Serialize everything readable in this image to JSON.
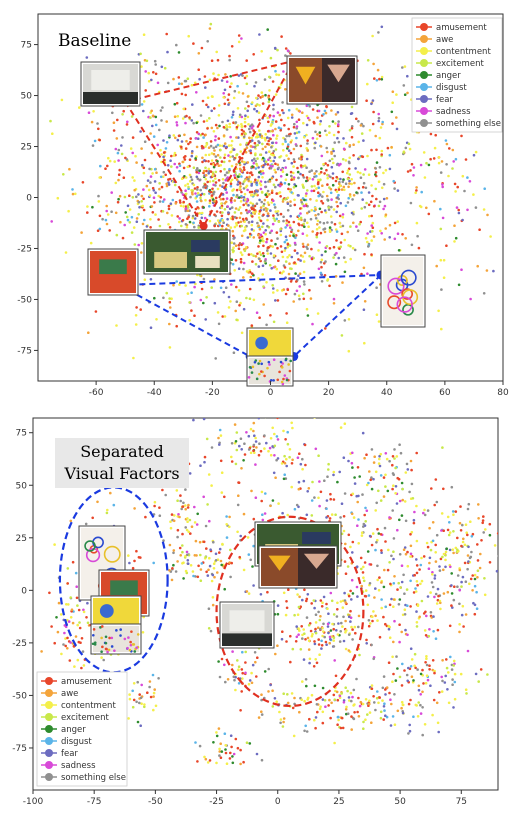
{
  "chart_data": [
    {
      "type": "scatter",
      "title": "Baseline",
      "xlim": [
        -80,
        80
      ],
      "ylim": [
        -90,
        90
      ],
      "xticks": [
        -60,
        -40,
        -20,
        0,
        20,
        40,
        60,
        80
      ],
      "yticks": [
        75,
        50,
        25,
        0,
        -25,
        -50,
        -75
      ],
      "legend_position": "top-right",
      "grid": false,
      "series": [
        {
          "name": "amusement",
          "color": "#e8462a"
        },
        {
          "name": "awe",
          "color": "#f4a43a"
        },
        {
          "name": "contentment",
          "color": "#f4ef4a"
        },
        {
          "name": "excitement",
          "color": "#c8e84a"
        },
        {
          "name": "anger",
          "color": "#2e8b2e"
        },
        {
          "name": "disgust",
          "color": "#5ab4e8"
        },
        {
          "name": "fear",
          "color": "#6c6cc0"
        },
        {
          "name": "sadness",
          "color": "#d84ad8"
        },
        {
          "name": "something else",
          "color": "#909090"
        }
      ],
      "red_connections": {
        "color": "#e03020",
        "points": [
          [
            -50,
            47
          ],
          [
            8,
            67
          ],
          [
            -23,
            -14
          ]
        ]
      },
      "blue_connections": {
        "color": "#1a3ae0",
        "points": [
          [
            -52,
            -43
          ],
          [
            38,
            -38
          ],
          [
            -7,
            -78
          ],
          [
            8,
            -78
          ]
        ]
      },
      "image_thumbnails": 8
    },
    {
      "type": "scatter",
      "title": "Separated\nVisual Factors",
      "xlim": [
        -100,
        90
      ],
      "ylim": [
        -95,
        82
      ],
      "xticks": [
        -100,
        -75,
        -50,
        -25,
        0,
        25,
        50,
        75
      ],
      "yticks": [
        75,
        50,
        25,
        0,
        -25,
        -50,
        -75
      ],
      "legend_position": "bottom-left",
      "grid": false,
      "series": [
        {
          "name": "amusement",
          "color": "#e8462a"
        },
        {
          "name": "awe",
          "color": "#f4a43a"
        },
        {
          "name": "contentment",
          "color": "#f4ef4a"
        },
        {
          "name": "excitement",
          "color": "#c8e84a"
        },
        {
          "name": "anger",
          "color": "#2e8b2e"
        },
        {
          "name": "disgust",
          "color": "#5ab4e8"
        },
        {
          "name": "fear",
          "color": "#6c6cc0"
        },
        {
          "name": "sadness",
          "color": "#d84ad8"
        },
        {
          "name": "something else",
          "color": "#909090"
        }
      ],
      "ellipses": [
        {
          "color": "#1a3ae0",
          "center": [
            -67,
            5
          ],
          "radii": [
            22,
            44
          ]
        },
        {
          "color": "#e03020",
          "center": [
            5,
            -10
          ],
          "radii": [
            30,
            45
          ]
        }
      ],
      "image_thumbnails": 6
    }
  ],
  "titles": {
    "top": "Baseline",
    "bottom_line1": "Separated",
    "bottom_line2": "Visual Factors"
  }
}
